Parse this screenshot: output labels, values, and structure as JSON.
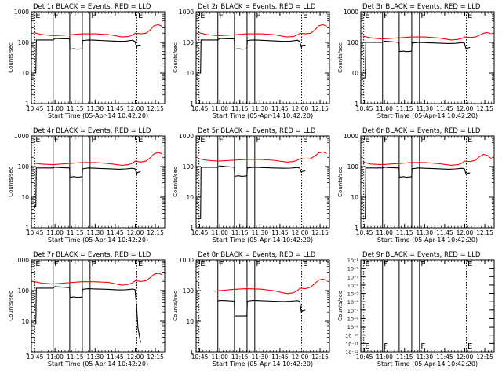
{
  "chart_data": {
    "type": "line",
    "xlabel": "Start Time (05-Apr-14 10:42:20)",
    "ylabel": "Counts/sec",
    "x_ticks": [
      "10:45",
      "11:00",
      "11:15",
      "11:30",
      "11:45",
      "12:00",
      "12:15"
    ],
    "x_tick_minutes": [
      45,
      60,
      75,
      90,
      105,
      120,
      135
    ],
    "x_range_minutes": [
      42.33,
      142
    ],
    "y_scale": "log",
    "ylim": [
      1,
      1000
    ],
    "y_ticks": [
      "1",
      "10",
      "100",
      "1000"
    ],
    "vlines": [
      {
        "label": "E",
        "minute": 44.5,
        "style": "dotted"
      },
      {
        "label": "F",
        "minute": 58.6,
        "style": "solid"
      },
      {
        "label": "",
        "minute": 71.0,
        "style": "solid"
      },
      {
        "label": "",
        "minute": 80.4,
        "style": "solid"
      },
      {
        "label": "F",
        "minute": 86.2,
        "style": "solid"
      },
      {
        "label": "E",
        "minute": 121.2,
        "style": "dotted"
      }
    ],
    "panels": [
      {
        "title": "Det 1r BLACK = Events, RED = LLD",
        "series": [
          {
            "color": "#000000",
            "x": [
              44.0,
              45.7,
              46.0,
              58.6,
              60.0,
              65.0,
              70.9,
              71.2,
              74.0,
              76.5,
              79.0,
              80.3,
              80.6,
              85.0,
              90.0,
              100.0,
              108.0,
              113.0,
              118.0,
              119.8,
              121.0,
              122.0,
              124.0
            ],
            "values": [
              10,
              10,
              120,
              120,
              135,
              132,
              130,
              60,
              62,
              60,
              61,
              62,
              115,
              120,
              118,
              112,
              108,
              110,
              118,
              108,
              70,
              80,
              82
            ]
          },
          {
            "color": "#ff0000",
            "x": [
              44.0,
              50.0,
              58.6,
              70.0,
              80.0,
              90.0,
              100.0,
              110.0,
              115.0,
              118.0,
              120.0,
              124.0,
              128.0,
              131.0,
              134.0,
              137.0,
              140.0
            ],
            "values": [
              210,
              180,
              165,
              175,
              190,
              190,
              180,
              150,
              155,
              175,
              200,
              190,
              200,
              250,
              350,
              380,
              340
            ]
          }
        ]
      },
      {
        "title": "Det 2r BLACK = Events, RED = LLD",
        "series": [
          {
            "color": "#000000",
            "x": [
              44.0,
              45.7,
              46.0,
              58.6,
              60.0,
              65.0,
              70.9,
              71.2,
              74.0,
              76.5,
              79.0,
              80.3,
              80.6,
              85.0,
              90.0,
              100.0,
              108.0,
              113.0,
              118.0,
              119.8,
              121.0,
              122.0,
              124.0
            ],
            "values": [
              10,
              10,
              120,
              120,
              135,
              132,
              130,
              60,
              62,
              60,
              61,
              62,
              115,
              120,
              118,
              112,
              108,
              110,
              118,
              108,
              70,
              80,
              82
            ]
          },
          {
            "color": "#ff0000",
            "x": [
              44.0,
              50.0,
              58.6,
              70.0,
              80.0,
              90.0,
              100.0,
              110.0,
              115.0,
              118.0,
              120.0,
              124.0,
              128.0,
              131.0,
              134.0,
              137.0,
              140.0
            ],
            "values": [
              210,
              180,
              165,
              175,
              190,
              190,
              180,
              150,
              155,
              175,
              200,
              190,
              200,
              250,
              350,
              380,
              340
            ]
          }
        ]
      },
      {
        "title": "Det 3r BLACK = Events, RED = LLD",
        "series": [
          {
            "color": "#000000",
            "x": [
              44.0,
              45.7,
              46.0,
              58.6,
              60.0,
              65.0,
              70.9,
              71.2,
              74.0,
              76.5,
              79.0,
              80.3,
              80.6,
              85.0,
              90.0,
              100.0,
              108.0,
              113.0,
              118.0,
              119.8,
              121.0,
              122.0,
              124.0
            ],
            "values": [
              7,
              7,
              100,
              100,
              110,
              105,
              100,
              50,
              52,
              50,
              51,
              52,
              95,
              100,
              98,
              95,
              92,
              93,
              98,
              95,
              60,
              65,
              68
            ]
          },
          {
            "color": "#ff0000",
            "x": [
              44.0,
              50.0,
              58.6,
              70.0,
              80.0,
              90.0,
              100.0,
              110.0,
              115.0,
              118.0,
              120.0,
              124.0,
              128.0,
              131.0,
              134.0,
              137.0,
              140.0
            ],
            "values": [
              160,
              140,
              130,
              140,
              150,
              150,
              140,
              120,
              125,
              135,
              150,
              145,
              150,
              170,
              200,
              210,
              190
            ]
          }
        ]
      },
      {
        "title": "Det 4r BLACK = Events, RED = LLD",
        "series": [
          {
            "color": "#000000",
            "x": [
              44.0,
              45.7,
              46.0,
              58.6,
              60.0,
              65.0,
              70.9,
              71.2,
              74.0,
              76.5,
              79.0,
              80.3,
              80.6,
              85.0,
              90.0,
              100.0,
              108.0,
              113.0,
              118.0,
              119.8,
              121.0,
              122.0,
              124.0
            ],
            "values": [
              5,
              5,
              90,
              90,
              95,
              92,
              90,
              45,
              47,
              45,
              46,
              47,
              85,
              90,
              88,
              85,
              82,
              84,
              88,
              85,
              60,
              65,
              68
            ]
          },
          {
            "color": "#ff0000",
            "x": [
              44.0,
              50.0,
              58.6,
              70.0,
              80.0,
              90.0,
              100.0,
              110.0,
              115.0,
              118.0,
              120.0,
              124.0,
              128.0,
              131.0,
              134.0,
              137.0,
              140.0
            ],
            "values": [
              130,
              120,
              115,
              125,
              135,
              135,
              125,
              110,
              115,
              130,
              150,
              140,
              150,
              190,
              260,
              290,
              260
            ]
          }
        ]
      },
      {
        "title": "Det 5r BLACK = Events, RED = LLD",
        "series": [
          {
            "color": "#000000",
            "x": [
              44.0,
              45.7,
              46.0,
              58.6,
              60.0,
              65.0,
              70.9,
              71.2,
              74.0,
              76.5,
              79.0,
              80.3,
              80.6,
              85.0,
              90.0,
              100.0,
              108.0,
              113.0,
              118.0,
              119.8,
              121.0,
              122.0,
              124.0
            ],
            "values": [
              2,
              2,
              95,
              95,
              105,
              100,
              95,
              48,
              50,
              48,
              49,
              50,
              90,
              95,
              93,
              90,
              88,
              89,
              93,
              90,
              65,
              70,
              72
            ]
          },
          {
            "color": "#ff0000",
            "x": [
              44.0,
              50.0,
              58.6,
              70.0,
              80.0,
              90.0,
              100.0,
              110.0,
              115.0,
              118.0,
              120.0,
              124.0,
              128.0,
              131.0,
              134.0,
              137.0,
              140.0
            ],
            "values": [
              180,
              160,
              150,
              160,
              170,
              170,
              160,
              140,
              145,
              160,
              180,
              175,
              180,
              220,
              280,
              300,
              270
            ]
          }
        ]
      },
      {
        "title": "Det 6r BLACK = Events, RED = LLD",
        "series": [
          {
            "color": "#000000",
            "x": [
              44.0,
              45.7,
              46.0,
              58.6,
              60.0,
              65.0,
              70.9,
              71.2,
              74.0,
              76.5,
              79.0,
              80.3,
              80.6,
              85.0,
              90.0,
              100.0,
              108.0,
              113.0,
              118.0,
              119.8,
              121.0,
              122.0,
              124.0
            ],
            "values": [
              2,
              2,
              90,
              90,
              95,
              92,
              90,
              45,
              47,
              45,
              46,
              47,
              85,
              90,
              88,
              85,
              82,
              84,
              88,
              85,
              55,
              60,
              62
            ]
          },
          {
            "color": "#ff0000",
            "x": [
              44.0,
              50.0,
              58.6,
              70.0,
              80.0,
              90.0,
              100.0,
              110.0,
              115.0,
              118.0,
              120.0,
              124.0,
              128.0,
              131.0,
              134.0,
              137.0,
              140.0
            ],
            "values": [
              140,
              120,
              115,
              125,
              135,
              135,
              125,
              110,
              115,
              130,
              150,
              145,
              160,
              210,
              250,
              230,
              180
            ]
          }
        ]
      },
      {
        "title": "Det 7r BLACK = Events, RED = LLD",
        "series": [
          {
            "color": "#000000",
            "x": [
              44.0,
              45.7,
              46.0,
              58.6,
              60.0,
              65.0,
              70.9,
              71.2,
              74.0,
              76.5,
              79.0,
              80.3,
              80.6,
              85.0,
              90.0,
              100.0,
              108.0,
              113.0,
              118.0,
              119.8,
              121.0,
              122.0,
              124.0
            ],
            "values": [
              8,
              8,
              120,
              120,
              135,
              130,
              125,
              60,
              62,
              60,
              61,
              62,
              110,
              115,
              113,
              110,
              105,
              107,
              112,
              108,
              30,
              6,
              2
            ]
          },
          {
            "color": "#ff0000",
            "x": [
              44.0,
              50.0,
              58.6,
              70.0,
              80.0,
              90.0,
              100.0,
              110.0,
              115.0,
              118.0,
              120.0,
              124.0,
              128.0,
              131.0,
              134.0,
              137.0,
              140.0
            ],
            "values": [
              200,
              175,
              165,
              180,
              195,
              195,
              185,
              150,
              160,
              180,
              210,
              200,
              210,
              260,
              340,
              370,
              330
            ]
          }
        ]
      },
      {
        "title": "Det 8r BLACK = Events, RED = LLD",
        "series": [
          {
            "color": "#000000",
            "x": [
              58.6,
              60.0,
              65.0,
              70.9,
              71.2,
              74.0,
              76.5,
              79.0,
              80.3,
              80.6,
              85.0,
              90.0,
              100.0,
              108.0,
              113.0,
              118.0,
              119.8,
              121.0,
              122.0,
              124.0
            ],
            "values": [
              45,
              48,
              47,
              45,
              15,
              15,
              15,
              15,
              15,
              45,
              48,
              47,
              45,
              44,
              45,
              47,
              45,
              20,
              22,
              23
            ]
          },
          {
            "color": "#ff0000",
            "x": [
              56.0,
              60.0,
              70.0,
              80.0,
              90.0,
              100.0,
              110.0,
              115.0,
              118.0,
              120.0,
              124.0,
              128.0,
              131.0,
              134.0,
              137.0,
              140.0
            ],
            "values": [
              95,
              100,
              110,
              115,
              112,
              100,
              80,
              85,
              100,
              120,
              115,
              130,
              170,
              220,
              240,
              210
            ]
          }
        ]
      },
      {
        "title": "Det 9r BLACK = Events, RED = LLD",
        "ylim": [
          1e-12,
          0.1
        ],
        "y_ticks": [
          "10⁻¹²",
          "10⁻¹¹",
          "10⁻¹⁰",
          "10⁻⁹",
          "10⁻⁸",
          "10⁻⁷",
          "10⁻⁶",
          "10⁻⁵",
          "10⁻⁴",
          "10⁻³",
          "10⁻²",
          "10⁻¹"
        ],
        "series": []
      }
    ]
  }
}
